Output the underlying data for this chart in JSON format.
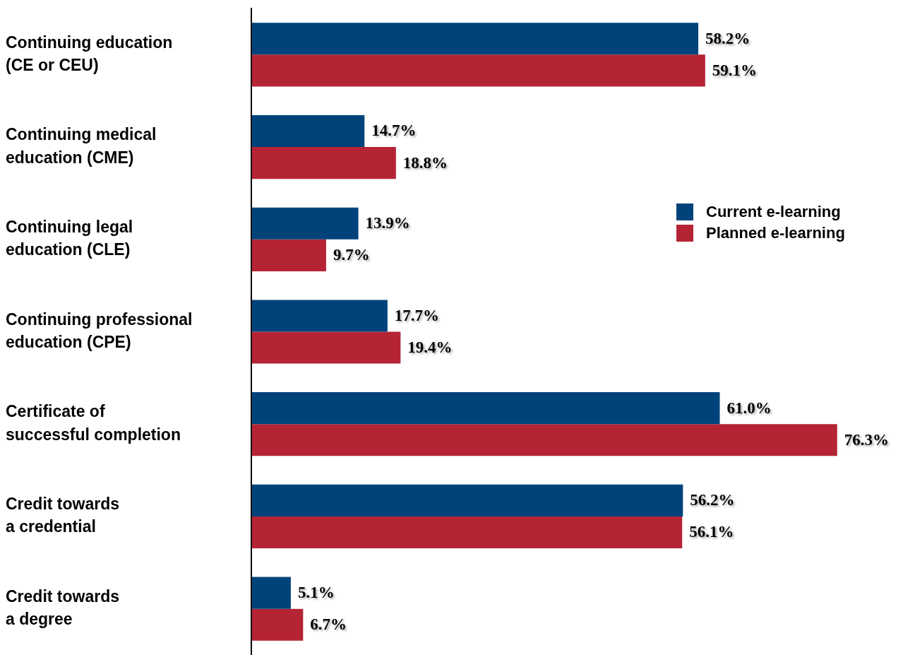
{
  "chart_data": {
    "type": "bar",
    "orientation": "horizontal",
    "categories": [
      "Continuing education (CE or CEU)",
      "Continuing medical education (CME)",
      "Continuing legal education (CLE)",
      "Continuing professional education (CPE)",
      "Certificate of successful completion",
      "Credit towards a credential",
      "Credit towards a degree"
    ],
    "series": [
      {
        "name": "Current e-learning",
        "color": "#00437a",
        "values": [
          58.2,
          14.7,
          13.9,
          17.7,
          61.0,
          56.2,
          5.1
        ],
        "value_labels": [
          "58.2%",
          "14.7%",
          "13.9%",
          "17.7%",
          "61.0%",
          "56.2%",
          "5.1%"
        ]
      },
      {
        "name": "Planned e-learning",
        "color": "#b52435",
        "values": [
          59.1,
          18.8,
          9.7,
          19.4,
          76.3,
          56.1,
          6.7
        ],
        "value_labels": [
          "59.1%",
          "18.8%",
          "9.7%",
          "19.4%",
          "76.3%",
          "56.1%",
          "6.7%"
        ]
      }
    ],
    "tick_labels": "y",
    "legend": "right"
  }
}
